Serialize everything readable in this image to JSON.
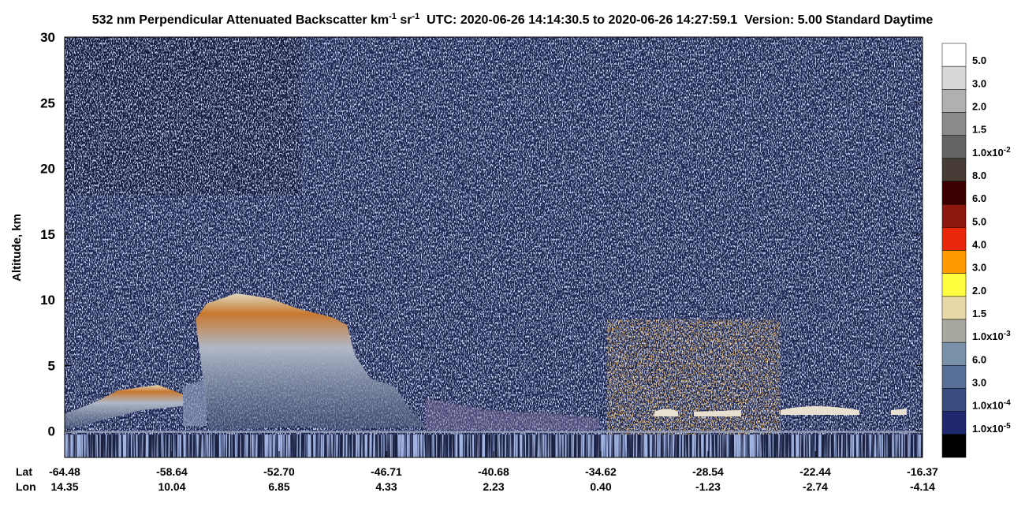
{
  "chart_data": {
    "type": "heatmap",
    "title": [
      "532 nm Perpendicular Attenuated Backscatter km",
      "-1",
      " sr",
      "-1",
      "  UTC: 2020-06-26 14:14:30.5 to 2020-06-26 14:27:59.1  Version: 5.00 Standard Daytime"
    ],
    "ylabel": "Altitude, km",
    "ylim": [
      -2,
      30
    ],
    "yticks": [
      0,
      5,
      10,
      15,
      20,
      25,
      30
    ],
    "lat_label": "Lat",
    "lon_label": "Lon",
    "lat": [
      "-64.48",
      "-58.64",
      "-52.70",
      "-46.71",
      "-40.68",
      "-34.62",
      "-28.54",
      "-22.44",
      "-16.37"
    ],
    "lon": [
      "14.35",
      "10.04",
      "6.85",
      "4.33",
      "2.23",
      "0.40",
      "-1.23",
      "-2.74",
      "-4.14"
    ],
    "colorbar_colors": [
      "#ffffff",
      "#d8d8d8",
      "#b0b0b0",
      "#8a8a8a",
      "#646464",
      "#473c36",
      "#3c0000",
      "#8c1810",
      "#e82808",
      "#ff9a00",
      "#ffff40",
      "#e8d8a8",
      "#a8a8a0",
      "#7890a8",
      "#587098",
      "#384c80",
      "#202870",
      "#000000"
    ],
    "colorbar_labels": [
      [
        "5.0"
      ],
      [
        "3.0"
      ],
      [
        "2.0"
      ],
      [
        "1.5"
      ],
      [
        "1.0x10",
        "-2"
      ],
      [
        "8.0"
      ],
      [
        "6.0"
      ],
      [
        "5.0"
      ],
      [
        "4.0"
      ],
      [
        "3.0"
      ],
      [
        "2.0"
      ],
      [
        "1.5"
      ],
      [
        "1.0x10",
        "-3"
      ],
      [
        "6.0"
      ],
      [
        "3.0"
      ],
      [
        "1.0x10",
        "-4"
      ],
      [
        "1.0x10",
        "-5"
      ]
    ]
  }
}
